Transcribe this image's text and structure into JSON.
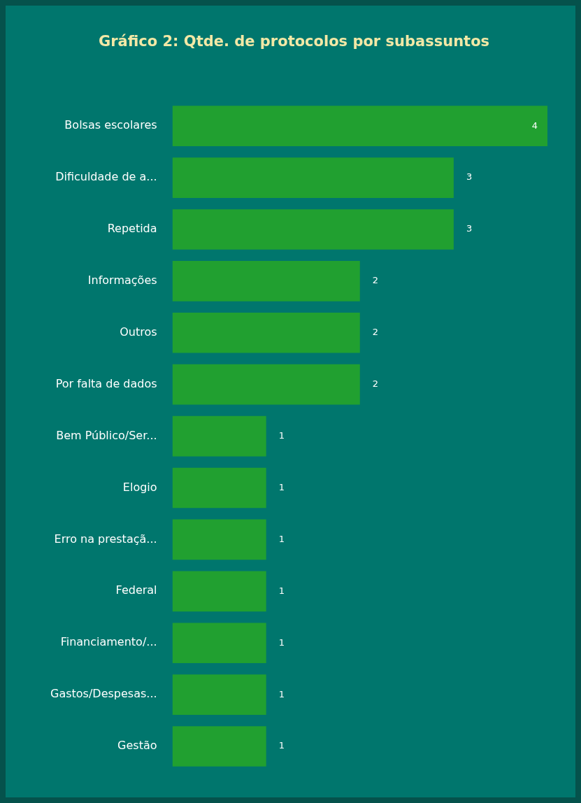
{
  "chart_data": {
    "type": "bar",
    "orientation": "horizontal",
    "title": "Gráfico 2: Qtde. de protocolos por subassuntos",
    "categories": [
      "Bolsas escolares",
      "Dificuldade de a...",
      "Repetida",
      "Informações",
      "Outros",
      "Por falta de dados",
      "Bem Público/Ser...",
      "Elogio",
      "Erro na prestaçã...",
      "Federal",
      "Financiamento/...",
      "Gastos/Despesas...",
      "Gestão"
    ],
    "values": [
      4,
      3,
      3,
      2,
      2,
      2,
      1,
      1,
      1,
      1,
      1,
      1,
      1
    ],
    "color": "#21a030",
    "data_labels": true,
    "grid": false,
    "legend": false
  }
}
